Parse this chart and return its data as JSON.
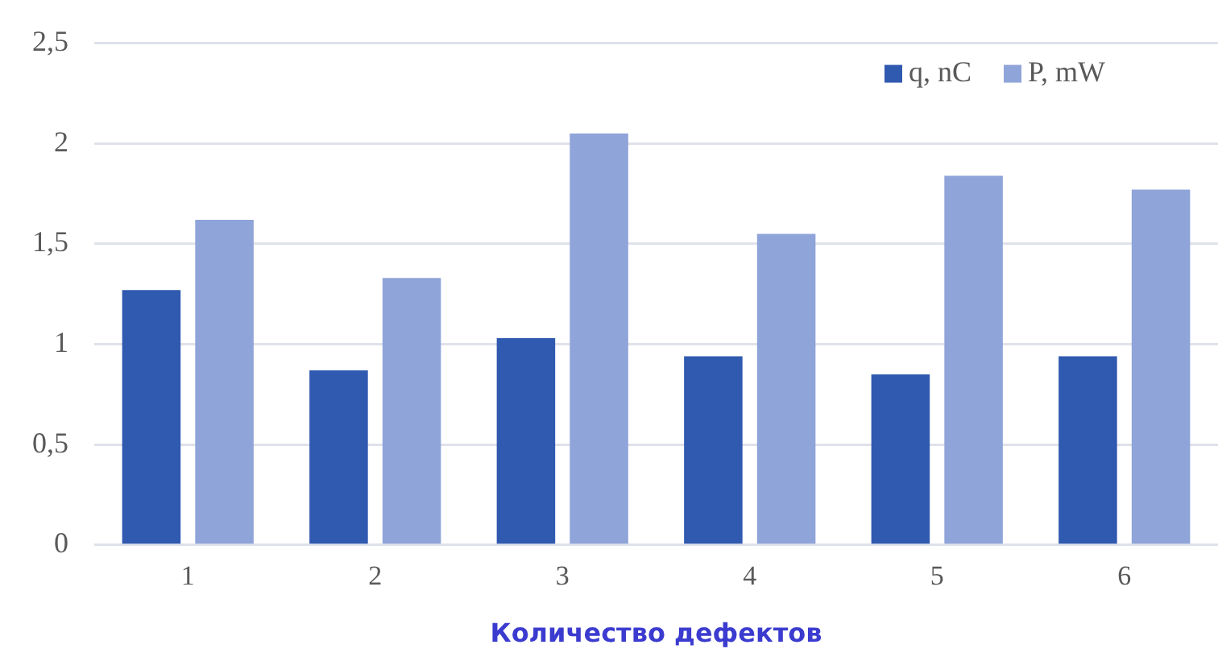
{
  "chart_data": {
    "type": "bar",
    "xlabel": "Количество дефектов",
    "categories": [
      "1",
      "2",
      "3",
      "4",
      "5",
      "6"
    ],
    "series": [
      {
        "name": "q, nC",
        "color": "#3059b0",
        "values": [
          1.27,
          0.87,
          1.03,
          0.94,
          0.85,
          0.94
        ]
      },
      {
        "name": "P, mW",
        "color": "#8fa4d8",
        "values": [
          1.62,
          1.33,
          2.05,
          1.55,
          1.84,
          1.77
        ]
      }
    ],
    "ylim": [
      0,
      2.5
    ],
    "yticks": [
      0,
      {
        "value": 0.5,
        "label": "0,5"
      },
      1,
      {
        "value": 1.5,
        "label": "1,5"
      },
      2,
      {
        "value": 2.5,
        "label": "2,5"
      }
    ],
    "grid": "y",
    "legend": "top right"
  }
}
